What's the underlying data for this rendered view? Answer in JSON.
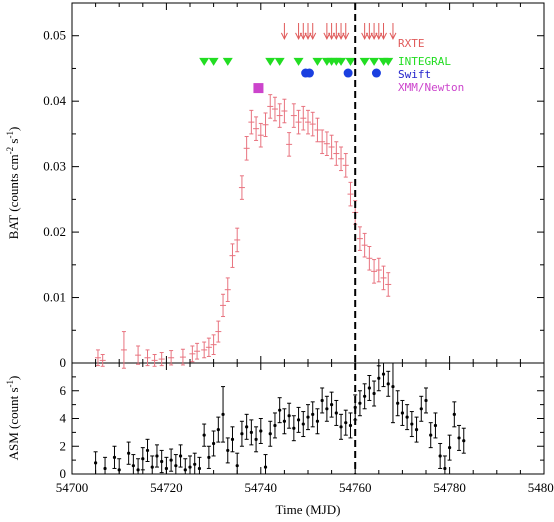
{
  "chart_data": [
    {
      "type": "scatter",
      "panel": "top",
      "ylabel_main": "BAT (counts cm",
      "ylabel_sup1": "-2",
      "ylabel_mid": " s",
      "ylabel_sup2": "-1",
      "ylabel_end": ")",
      "xlim": [
        54700,
        54800
      ],
      "ylim": [
        0,
        0.055
      ],
      "yticks": [
        "0",
        "0.01",
        "0.02",
        "0.03",
        "0.04",
        "0.05"
      ],
      "ytick_values": [
        0,
        0.01,
        0.02,
        0.03,
        0.04,
        0.05
      ],
      "grid": false,
      "vertical_line_x": 54760,
      "series": [
        {
          "name": "BAT",
          "color": "#e8737f",
          "x": [
            54705.5,
            54706.5,
            54711,
            54714,
            54716,
            54717.5,
            54719,
            54721,
            54723.5,
            54725.5,
            54726.5,
            54728,
            54729,
            54730,
            54731,
            54732,
            54733,
            54734,
            54735,
            54736,
            54737,
            54738,
            54739,
            54740,
            54741,
            54742,
            54743,
            54744,
            54745,
            54746,
            54747,
            54748,
            54749,
            54750,
            54751,
            54752,
            54753,
            54754,
            54755,
            54756,
            54757,
            54758,
            54759,
            54760,
            54761,
            54762,
            54763,
            54764,
            54765,
            54766,
            54767
          ],
          "y": [
            0.0008,
            0.0004,
            0.002,
            0.0012,
            0.0008,
            0.0004,
            0.0006,
            0.0008,
            0.0009,
            0.0014,
            0.0018,
            0.002,
            0.0024,
            0.0028,
            0.0048,
            0.0088,
            0.0112,
            0.0164,
            0.0188,
            0.0268,
            0.0328,
            0.0368,
            0.0358,
            0.0348,
            0.0364,
            0.0392,
            0.0388,
            0.0378,
            0.0385,
            0.0334,
            0.0378,
            0.0368,
            0.0374,
            0.0368,
            0.0365,
            0.0356,
            0.0338,
            0.0335,
            0.033,
            0.032,
            0.0312,
            0.0302,
            0.0258,
            0.023,
            0.019,
            0.018,
            0.016,
            0.014,
            0.0142,
            0.013,
            0.012
          ],
          "yerr": [
            0.0012,
            0.0009,
            0.0028,
            0.0014,
            0.0012,
            0.0009,
            0.001,
            0.0011,
            0.0012,
            0.0012,
            0.0012,
            0.0012,
            0.0014,
            0.0015,
            0.0016,
            0.0017,
            0.0018,
            0.0018,
            0.0018,
            0.0018,
            0.0018,
            0.0018,
            0.0018,
            0.0018,
            0.0018,
            0.0018,
            0.0018,
            0.0018,
            0.0018,
            0.0018,
            0.0018,
            0.0018,
            0.0018,
            0.0018,
            0.0018,
            0.0018,
            0.0018,
            0.0018,
            0.0018,
            0.0018,
            0.0018,
            0.0018,
            0.0018,
            0.0018,
            0.0018,
            0.0018,
            0.0018,
            0.0018,
            0.0018,
            0.0018,
            0.0018
          ]
        }
      ],
      "observations": [
        {
          "name": "RXTE",
          "label": "RXTE",
          "color": "#e05a5a",
          "marker": "arrow",
          "y_level": 0.0515,
          "x": [
            54745,
            54748,
            54749,
            54750,
            54751,
            54754,
            54755,
            54756,
            54757,
            54758,
            54762,
            54763,
            54764,
            54765,
            54766,
            54768
          ]
        },
        {
          "name": "INTEGRAL",
          "label": "INTEGRAL",
          "color": "#22dd22",
          "marker": "triangle-down",
          "y_level": 0.046,
          "x": [
            54728,
            54730,
            54733,
            54742,
            54744,
            54748,
            54752,
            54754,
            54755,
            54756,
            54757,
            54759,
            54762,
            54764,
            54766,
            54767
          ]
        },
        {
          "name": "Swift",
          "label": "Swift",
          "color": "#1a3fe0",
          "marker": "circle",
          "y_level": 0.0443,
          "x": [
            54749.5,
            54750.3,
            54758.5,
            54764.5
          ]
        },
        {
          "name": "XMM/Newton",
          "label": "XMM/Newton",
          "color": "#cc44cc",
          "marker": "square",
          "y_level": 0.042,
          "x": [
            54739.5
          ]
        }
      ],
      "legend_placement": "top-right"
    },
    {
      "type": "scatter",
      "panel": "bottom",
      "ylabel_main": "ASM (count s",
      "ylabel_sup": "-1",
      "ylabel_end": ")",
      "xlabel": "Time (MJD)",
      "xlim": [
        54700,
        54800
      ],
      "ylim": [
        0,
        8
      ],
      "yticks": [
        "0",
        "2",
        "4",
        "6"
      ],
      "ytick_values": [
        0,
        2,
        4,
        6
      ],
      "xticks": [
        "54700",
        "54720",
        "54740",
        "54760",
        "54780",
        "54800"
      ],
      "xtick_values": [
        54700,
        54720,
        54740,
        54760,
        54780,
        54800
      ],
      "grid": false,
      "vertical_line_x": 54760,
      "series": [
        {
          "name": "ASM",
          "color": "#000000",
          "x": [
            54705,
            54707,
            54709,
            54710,
            54712,
            54713,
            54714,
            54715,
            54716,
            54717,
            54718,
            54719,
            54720,
            54721,
            54722,
            54723,
            54724,
            54725,
            54726,
            54727,
            54728,
            54729,
            54730,
            54731,
            54732,
            54733,
            54734,
            54735,
            54736,
            54737,
            54738,
            54739,
            54740,
            54741,
            54742,
            54743,
            54744,
            54745,
            54746,
            54747,
            54748,
            54749,
            54750,
            54751,
            54752,
            54753,
            54754,
            54755,
            54756,
            54757,
            54758,
            54759,
            54760,
            54761,
            54762,
            54763,
            54764,
            54765,
            54766,
            54767,
            54768,
            54769,
            54770,
            54771,
            54772,
            54773,
            54774,
            54775,
            54776,
            54777,
            54778,
            54779,
            54780,
            54781,
            54782,
            54783
          ],
          "y": [
            0.8,
            0.4,
            1.2,
            0.3,
            1.5,
            0.6,
            0.3,
            1.1,
            1.7,
            0.5,
            1.3,
            0.9,
            0.4,
            1.0,
            0.6,
            1.3,
            0.3,
            0.5,
            0.7,
            0.4,
            2.8,
            1.2,
            2.2,
            3.2,
            4.3,
            1.7,
            2.5,
            0.6,
            2.9,
            3.4,
            3.0,
            2.5,
            3.1,
            0.5,
            2.9,
            3.5,
            4.6,
            3.8,
            4.2,
            3.3,
            3.9,
            3.6,
            4.1,
            4.3,
            3.8,
            5.3,
            4.7,
            5.0,
            4.4,
            3.4,
            3.7,
            3.5,
            4.8,
            5.1,
            5.6,
            6.2,
            5.8,
            6.9,
            7.2,
            6.5,
            6.3,
            5.1,
            4.4,
            4.1,
            3.6,
            3.2,
            4.7,
            5.3,
            2.8,
            3.5,
            1.3,
            0.4,
            1.9,
            4.3,
            2.6,
            2.4
          ],
          "yerr": [
            0.8,
            0.8,
            0.8,
            0.8,
            0.8,
            0.8,
            0.8,
            0.8,
            0.8,
            0.8,
            0.8,
            0.8,
            0.8,
            0.8,
            0.8,
            0.8,
            0.8,
            0.8,
            0.8,
            0.8,
            0.8,
            0.8,
            0.9,
            0.9,
            2.0,
            0.9,
            0.9,
            0.9,
            0.9,
            0.9,
            0.9,
            0.9,
            0.9,
            0.9,
            0.9,
            0.9,
            0.9,
            0.9,
            0.9,
            0.9,
            0.9,
            0.9,
            0.9,
            0.9,
            0.9,
            0.9,
            0.9,
            0.9,
            0.9,
            0.9,
            0.9,
            0.9,
            0.9,
            0.9,
            0.9,
            0.9,
            0.9,
            0.9,
            0.9,
            0.9,
            2.6,
            0.9,
            0.9,
            0.9,
            0.9,
            0.9,
            0.9,
            0.9,
            0.9,
            0.9,
            0.9,
            0.9,
            0.9,
            0.9,
            0.9,
            0.9
          ]
        }
      ]
    }
  ]
}
